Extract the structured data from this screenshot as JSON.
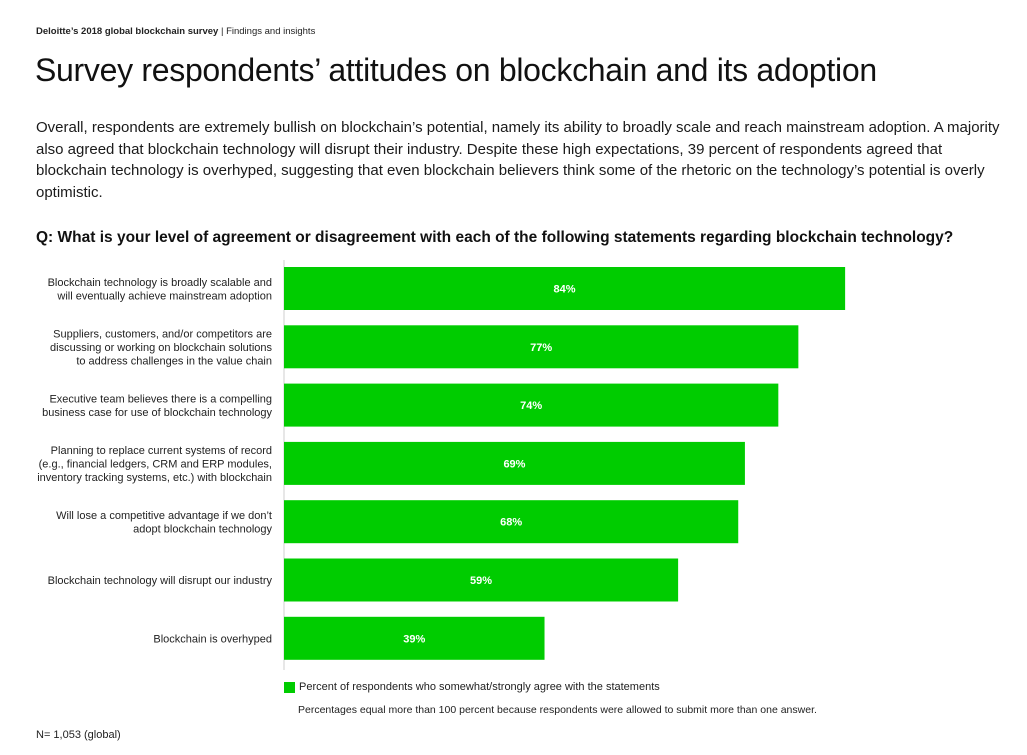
{
  "header": {
    "brand": "Deloitte’s 2018 global blockchain survey",
    "separator": " | ",
    "section": "Findings and insights"
  },
  "title": "Survey respondents’ attitudes on blockchain and its adoption",
  "intro": "Overall, respondents are extremely bullish on blockchain’s potential, namely its ability to broadly scale and reach mainstream adoption. A majority also agreed that blockchain technology will disrupt their industry. Despite these high expectations, 39 percent of respondents agreed that blockchain technology is overhyped, suggesting that even blockchain believers think some of the rhetoric on the technology’s potential is overly optimistic.",
  "question": "Q: What is your level of agreement or disagreement with each of the following statements regarding blockchain technology?",
  "colors": {
    "bar": "#00cc00",
    "bar_label": "#ffffff"
  },
  "chart_data": {
    "type": "bar",
    "orientation": "horizontal",
    "categories": [
      [
        "Blockchain technology is broadly scalable and",
        "will eventually achieve mainstream adoption"
      ],
      [
        "Suppliers, customers, and/or competitors are",
        "discussing or working on blockchain solutions",
        "to address challenges in the value chain"
      ],
      [
        "Executive team believes there is a compelling",
        "business case for use of blockchain technology"
      ],
      [
        "Planning to replace current systems of record",
        "(e.g., financial ledgers, CRM and ERP modules,",
        "inventory tracking systems, etc.) with blockchain"
      ],
      [
        "Will lose a competitive advantage if we don’t",
        "adopt blockchain technology"
      ],
      [
        "Blockchain technology will disrupt our industry"
      ],
      [
        "Blockchain is overhyped"
      ]
    ],
    "series": [
      {
        "name": "Percent of respondents who somewhat/strongly agree with the statements",
        "values": [
          84,
          77,
          74,
          69,
          68,
          59,
          39
        ],
        "labels": [
          "84%",
          "77%",
          "74%",
          "69%",
          "68%",
          "59%",
          "39%"
        ]
      }
    ],
    "xlim": [
      0,
      100
    ],
    "grid": false,
    "legend": "bottom"
  },
  "legend": {
    "label": "Percent of respondents who somewhat/strongly agree with the statements"
  },
  "footnote": "Percentages equal more than 100 percent because respondents were allowed to submit more than one answer.",
  "base_note": "N= 1,053 (global)"
}
